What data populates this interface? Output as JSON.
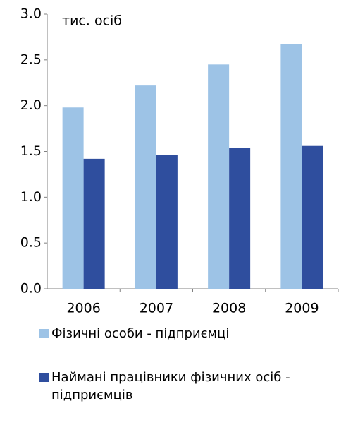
{
  "chart_data": {
    "type": "bar",
    "annotation": "тис. осіб",
    "categories": [
      "2006",
      "2007",
      "2008",
      "2009"
    ],
    "series": [
      {
        "name": "Фізичні особи - підприємці",
        "color": "#9dc3e6",
        "values": [
          1.98,
          2.22,
          2.45,
          2.67
        ]
      },
      {
        "name": "Наймані працівники фізичних осіб - підприємців",
        "color": "#2f4e9e",
        "values": [
          1.42,
          1.46,
          1.54,
          1.56
        ]
      }
    ],
    "ylim": [
      0,
      3
    ],
    "yticks": [
      {
        "value": 0,
        "label": "0.0"
      },
      {
        "value": 0.5,
        "label": "0.5"
      },
      {
        "value": 1,
        "label": "1.0"
      },
      {
        "value": 1.5,
        "label": "1.5"
      },
      {
        "value": 2,
        "label": "2.0"
      },
      {
        "value": 2.5,
        "label": "2.5"
      },
      {
        "value": 3,
        "label": "3.0"
      }
    ],
    "grid": false,
    "legend": "bottom"
  }
}
